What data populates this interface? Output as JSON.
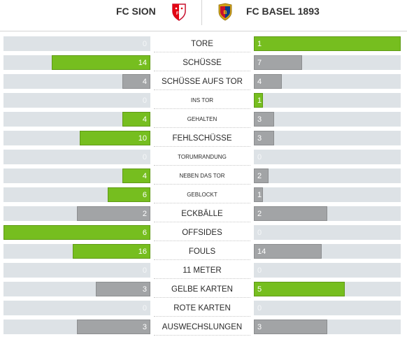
{
  "header": {
    "home_team": "FC SION",
    "away_team": "FC BASEL 1893",
    "home_crest_icon": "fc-sion-crest-icon",
    "away_crest_icon": "fc-basel-crest-icon"
  },
  "colors": {
    "leading": "#76be1f",
    "trailing": "#a2a4a6",
    "track": "#dde2e6"
  },
  "stats": [
    {
      "label": "TORE",
      "home": 0,
      "away": 1,
      "style": "main",
      "home_fill": 0.0,
      "away_fill": 1.0
    },
    {
      "label": "SCHÜSSE",
      "home": 14,
      "away": 7,
      "style": "main",
      "home_fill": 0.67,
      "away_fill": 0.33
    },
    {
      "label": "SCHÜSSE AUFS TOR",
      "home": 4,
      "away": 4,
      "style": "main",
      "home_fill": 0.19,
      "away_fill": 0.19
    },
    {
      "label": "INS TOR",
      "home": 0,
      "away": 1,
      "style": "sub",
      "home_fill": 0.0,
      "away_fill": 0.06
    },
    {
      "label": "GEHALTEN",
      "home": 4,
      "away": 3,
      "style": "sub",
      "home_fill": 0.19,
      "away_fill": 0.14
    },
    {
      "label": "FEHLSCHÜSSE",
      "home": 10,
      "away": 3,
      "style": "main",
      "home_fill": 0.48,
      "away_fill": 0.14
    },
    {
      "label": "TORUMRANDUNG",
      "home": 0,
      "away": 0,
      "style": "sub",
      "home_fill": 0.0,
      "away_fill": 0.0
    },
    {
      "label": "NEBEN DAS TOR",
      "home": 4,
      "away": 2,
      "style": "sub",
      "home_fill": 0.19,
      "away_fill": 0.1
    },
    {
      "label": "GEBLOCKT",
      "home": 6,
      "away": 1,
      "style": "sub",
      "home_fill": 0.29,
      "away_fill": 0.06
    },
    {
      "label": "ECKBÄLLE",
      "home": 2,
      "away": 2,
      "style": "main",
      "home_fill": 0.5,
      "away_fill": 0.5
    },
    {
      "label": "OFFSIDES",
      "home": 6,
      "away": 0,
      "style": "main",
      "home_fill": 1.0,
      "away_fill": 0.0
    },
    {
      "label": "FOULS",
      "home": 16,
      "away": 14,
      "style": "main",
      "home_fill": 0.53,
      "away_fill": 0.46
    },
    {
      "label": "11 METER",
      "home": 0,
      "away": 0,
      "style": "main",
      "home_fill": 0.0,
      "away_fill": 0.0
    },
    {
      "label": "GELBE KARTEN",
      "home": 3,
      "away": 5,
      "style": "main",
      "home_fill": 0.37,
      "away_fill": 0.62
    },
    {
      "label": "ROTE KARTEN",
      "home": 0,
      "away": 0,
      "style": "main",
      "home_fill": 0.0,
      "away_fill": 0.0
    },
    {
      "label": "AUSWECHSLUNGEN",
      "home": 3,
      "away": 3,
      "style": "main",
      "home_fill": 0.5,
      "away_fill": 0.5
    }
  ]
}
